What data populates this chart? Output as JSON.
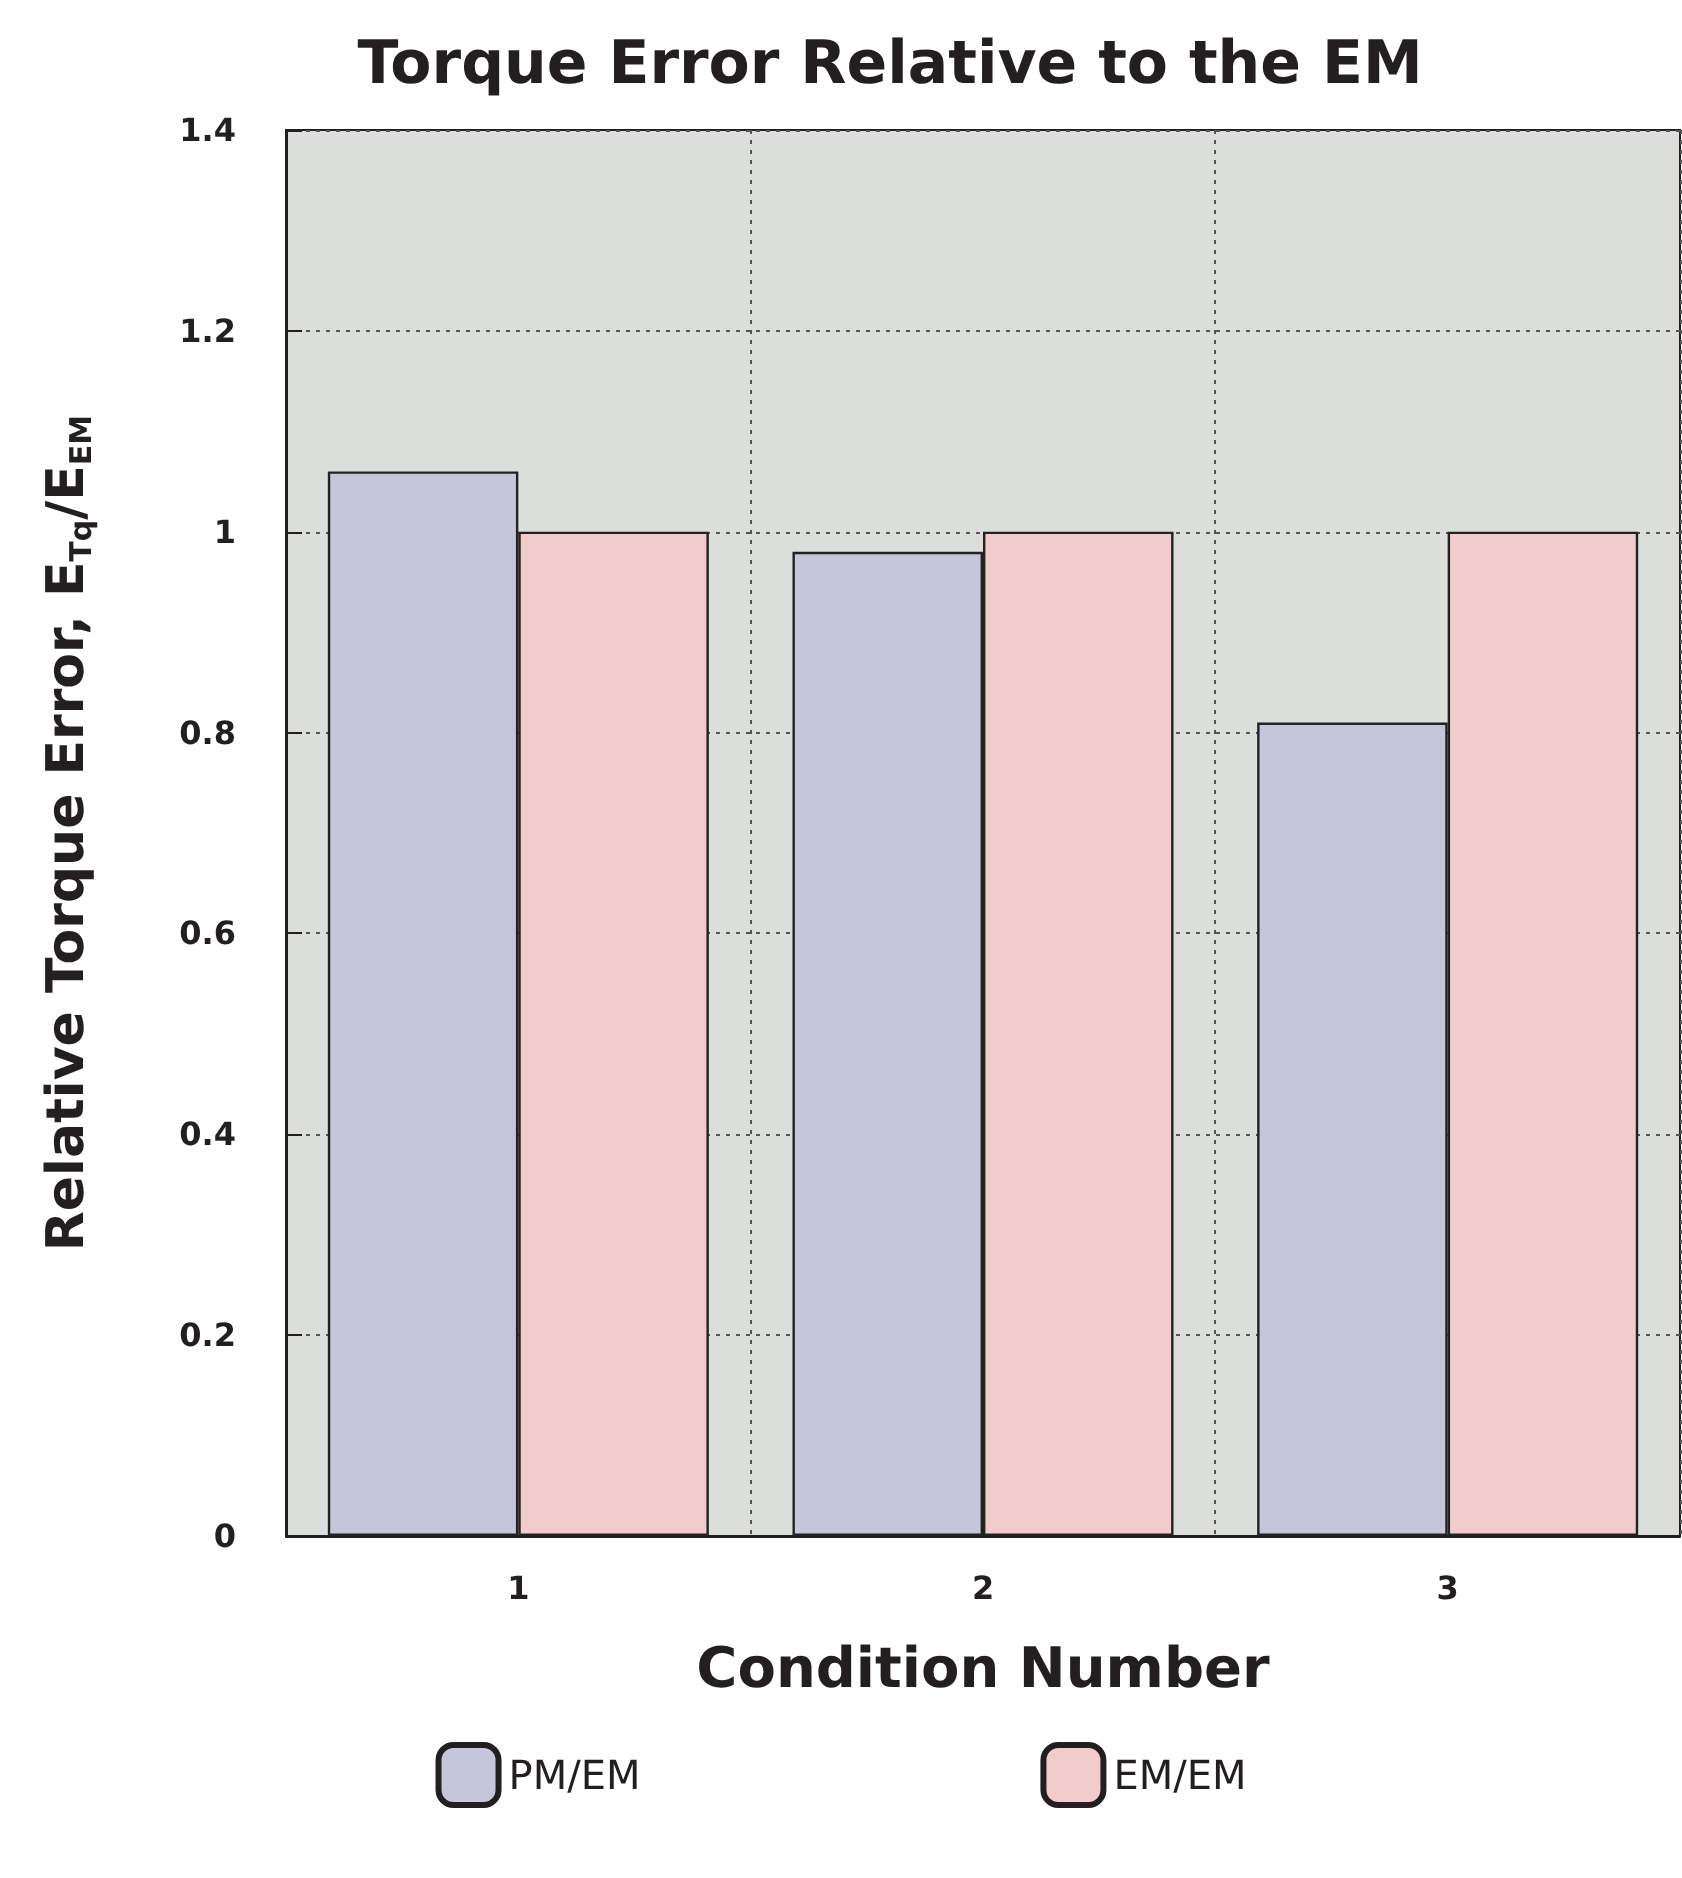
{
  "chart_data": {
    "type": "bar",
    "title": "Torque Error Relative to the EM",
    "xlabel": "Condition Number",
    "ylabel": "Relative Torque Error, E$_{Tq}$/E$_{EM}$",
    "categories": [
      "1",
      "2",
      "3"
    ],
    "series": [
      {
        "name": "PM/EM",
        "color": "#c6c6da",
        "values": [
          1.06,
          0.98,
          0.81
        ]
      },
      {
        "name": "EM/EM",
        "color": "#f2cccc",
        "values": [
          1.0,
          1.0,
          1.0
        ]
      }
    ],
    "ylim": [
      0,
      1.4
    ],
    "yticks": [
      0,
      0.2,
      0.4,
      0.6,
      0.8,
      1,
      1.2,
      1.4
    ],
    "grid": true,
    "legend": "bottom"
  }
}
